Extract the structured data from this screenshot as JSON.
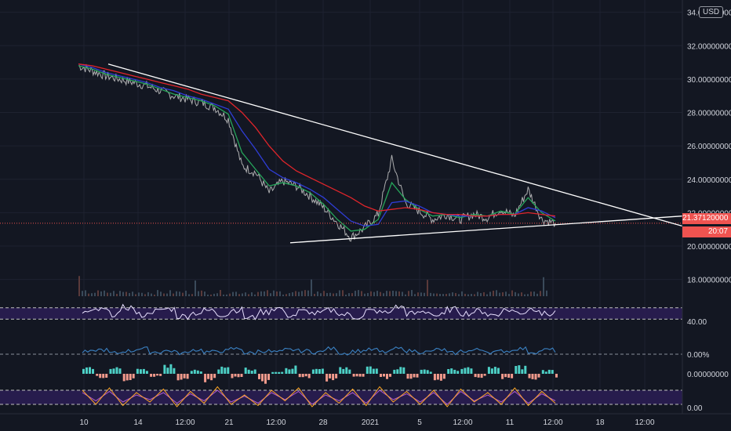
{
  "currency_label": "USD",
  "current_price_label": "21.37120000",
  "countdown_label": "20:07",
  "colors": {
    "background": "#131722",
    "grid": "#1e2230",
    "price_line": "#c8c8c8",
    "trendline": "#ffffff",
    "ma_fast": "#26a65b",
    "ma_mid": "#2f3dd6",
    "ma_slow": "#e0252b",
    "rsi": "#e8e0ff",
    "rsi_band": "#2a1d52",
    "stoch_k": "#ffa726",
    "stoch_d": "#b35ccf",
    "blue_osc": "#3b82c4",
    "macd_up": "#4dd0c6",
    "macd_down": "#f29a8c",
    "price_tag": "#ef5350"
  },
  "chart_data": {
    "type": "line",
    "title": "",
    "x_tick_labels": [
      "10",
      "14",
      "12:00",
      "21",
      "12:00",
      "28",
      "2021",
      "5",
      "12:00",
      "11",
      "12:00",
      "18",
      "12:00"
    ],
    "y_tick_labels": [
      "34.00000000",
      "32.00000000",
      "30.00000000",
      "28.00000000",
      "26.00000000",
      "24.00000000",
      "22.00000000",
      "20.00000000",
      "18.00000000"
    ],
    "ylim": [
      17.0,
      34.5
    ],
    "grid": true,
    "price_series": {
      "name": "",
      "x": [
        "10",
        "11",
        "12",
        "13",
        "14",
        "15",
        "16",
        "17",
        "18",
        "19",
        "20",
        "21",
        "21 12:00",
        "22",
        "23",
        "24",
        "25",
        "26",
        "27",
        "28",
        "29",
        "30",
        "31",
        "2021",
        "2",
        "3",
        "4",
        "5",
        "6",
        "7",
        "8",
        "9",
        "10",
        "11",
        "11 12:00",
        "12"
      ],
      "values": [
        30.8,
        30.5,
        30.2,
        30.0,
        29.8,
        29.6,
        29.3,
        29.0,
        28.8,
        28.6,
        28.3,
        27.6,
        24.8,
        24.4,
        23.2,
        23.9,
        23.6,
        23.0,
        22.3,
        21.4,
        20.5,
        21.1,
        21.9,
        25.2,
        22.6,
        22.1,
        21.6,
        21.9,
        21.6,
        21.9,
        21.7,
        22.2,
        21.8,
        23.4,
        21.6,
        21.37
      ]
    },
    "moving_averages": [
      {
        "name": "",
        "values": [
          30.8,
          30.6,
          30.3,
          30.1,
          29.9,
          29.7,
          29.4,
          29.1,
          28.9,
          28.7,
          28.4,
          27.9,
          25.6,
          24.6,
          23.6,
          23.8,
          23.6,
          23.2,
          22.5,
          21.6,
          20.9,
          21.0,
          21.6,
          23.8,
          22.8,
          22.2,
          21.8,
          21.9,
          21.7,
          21.9,
          21.8,
          22.1,
          21.9,
          22.9,
          22.0,
          21.5
        ]
      },
      {
        "name": "",
        "values": [
          30.9,
          30.7,
          30.4,
          30.2,
          30.0,
          29.8,
          29.5,
          29.3,
          29.0,
          28.8,
          28.5,
          28.2,
          26.9,
          25.8,
          24.6,
          24.1,
          23.8,
          23.4,
          22.9,
          22.2,
          21.5,
          21.2,
          21.3,
          22.6,
          22.7,
          22.4,
          22.0,
          21.9,
          21.8,
          21.8,
          21.8,
          21.9,
          21.9,
          22.3,
          22.1,
          21.7
        ]
      },
      {
        "name": "",
        "values": [
          30.9,
          30.8,
          30.6,
          30.4,
          30.2,
          30.0,
          29.8,
          29.6,
          29.4,
          29.1,
          28.9,
          28.7,
          28.0,
          27.1,
          26.0,
          25.1,
          24.5,
          24.1,
          23.7,
          23.3,
          22.9,
          22.4,
          22.1,
          22.2,
          22.3,
          22.2,
          22.0,
          21.9,
          21.9,
          21.8,
          21.8,
          21.9,
          21.9,
          22.0,
          21.9,
          21.8
        ]
      }
    ],
    "trendlines": [
      {
        "name": "",
        "from": [
          "11",
          30.9
        ],
        "to": [
          "18",
          21.2
        ]
      },
      {
        "name": "",
        "from": [
          "24",
          20.2
        ],
        "to": [
          "18",
          21.8
        ]
      }
    ],
    "current_price": 21.3712,
    "indicators": [
      {
        "type": "line",
        "name": "",
        "ylim": [
          0,
          100
        ],
        "y_tick_labels": [
          "40.00"
        ],
        "band": [
          30,
          70
        ],
        "values": [
          54,
          62,
          48,
          71,
          45,
          58,
          66,
          40,
          52,
          60,
          47,
          63,
          35,
          55,
          68,
          44,
          57,
          50,
          61,
          46,
          38,
          59,
          53,
          72,
          49,
          56,
          43,
          64,
          51,
          58,
          45,
          62,
          54,
          67,
          48,
          55
        ]
      },
      {
        "type": "line",
        "name": "",
        "y_tick_labels": [
          "0.00%"
        ],
        "values": [
          0.2,
          0.4,
          0.1,
          0.3,
          0.5,
          0.2,
          0.3,
          0.1,
          0.4,
          0.2,
          0.3,
          0.5,
          0.1,
          0.3,
          0.2,
          0.4,
          0.3,
          0.2,
          0.5,
          0.1,
          0.3,
          0.4,
          0.2,
          0.5,
          0.3,
          0.2,
          0.4,
          0.1,
          0.3,
          0.4,
          0.2,
          0.3,
          0.5,
          0.2,
          0.4,
          0.3
        ]
      },
      {
        "type": "bar",
        "name": "",
        "y_tick_labels": [
          "0.00000000"
        ],
        "values": [
          0.6,
          -0.4,
          0.8,
          -0.7,
          0.5,
          -0.3,
          0.9,
          -0.6,
          0.4,
          -0.8,
          0.7,
          -0.5,
          0.6,
          -0.9,
          0.3,
          0.8,
          -0.4,
          0.5,
          -0.7,
          0.6,
          -0.3,
          0.9,
          -0.5,
          0.7,
          -0.6,
          0.4,
          -0.8,
          0.5,
          0.6,
          -0.4,
          0.7,
          -0.5,
          0.8,
          -0.6,
          0.4,
          -0.7
        ]
      },
      {
        "type": "line",
        "name": "",
        "ylim": [
          0,
          100
        ],
        "y_tick_labels": [
          "0.00"
        ],
        "band": [
          20,
          80
        ],
        "k": [
          80,
          20,
          90,
          15,
          70,
          30,
          85,
          10,
          75,
          25,
          95,
          20,
          60,
          15,
          80,
          35,
          90,
          10,
          70,
          25,
          85,
          15,
          95,
          30,
          75,
          20,
          80,
          10,
          85,
          30,
          70,
          20,
          90,
          15,
          75,
          25
        ],
        "d": [
          70,
          35,
          75,
          30,
          60,
          40,
          70,
          25,
          65,
          35,
          80,
          30,
          55,
          25,
          70,
          40,
          75,
          20,
          60,
          35,
          70,
          25,
          80,
          40,
          65,
          30,
          70,
          20,
          75,
          35,
          60,
          30,
          75,
          25,
          65,
          35
        ]
      }
    ]
  }
}
